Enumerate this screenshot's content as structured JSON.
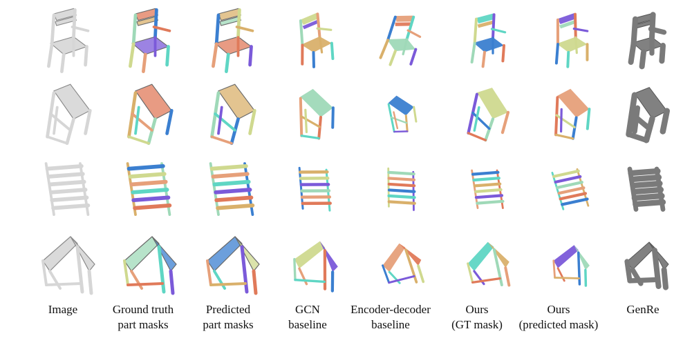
{
  "columns": [
    {
      "key": "image",
      "label_lines": [
        "Image"
      ],
      "render": "gray"
    },
    {
      "key": "gt",
      "label_lines": [
        "Ground truth",
        "part masks"
      ],
      "render": "mask"
    },
    {
      "key": "pred",
      "label_lines": [
        "Predicted",
        "part masks"
      ],
      "render": "mask"
    },
    {
      "key": "gcn",
      "label_lines": [
        "GCN",
        "baseline"
      ],
      "render": "parts"
    },
    {
      "key": "encdec",
      "label_lines": [
        "Encoder-decoder",
        "baseline"
      ],
      "render": "parts"
    },
    {
      "key": "ours_gt",
      "label_lines": [
        "Ours",
        "(GT mask)"
      ],
      "render": "parts"
    },
    {
      "key": "ours_pred",
      "label_lines": [
        "Ours",
        "(predicted mask)"
      ],
      "render": "parts"
    },
    {
      "key": "genre",
      "label_lines": [
        "GenRe"
      ],
      "render": "mesh"
    }
  ],
  "rows": [
    "chair-spindle-back",
    "chair-tilted-seat",
    "ladder-shelf",
    "a-frame-rack"
  ],
  "colors": {
    "part_palette": [
      "#5fd6c4",
      "#7b5ad9",
      "#e07a5a",
      "#d9b06b",
      "#9fd9b8",
      "#3b7fd0",
      "#cfd98f",
      "#e6a07a"
    ],
    "gray": "#d6d6d6",
    "gray_edge": "#8a8a8a",
    "mesh": "#7a7a7a",
    "caption": "#111111"
  }
}
